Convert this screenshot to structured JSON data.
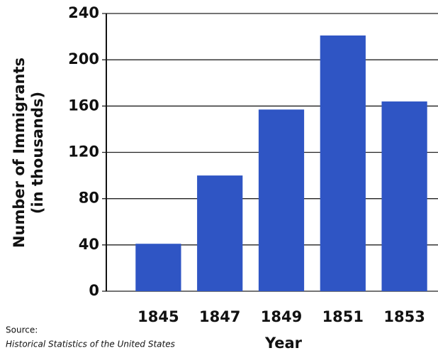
{
  "chart_data": {
    "type": "bar",
    "y_label": [
      "Number of Immigrants",
      "(in thousands)"
    ],
    "x_label": "Year",
    "source_label": "Source:",
    "source_text": "Historical Statistics of the United States",
    "categories": [
      "1845",
      "1847",
      "1849",
      "1851",
      "1853"
    ],
    "values": [
      41,
      100,
      157,
      221,
      164
    ],
    "color": "#2f55c4",
    "ylim": [
      0,
      240
    ],
    "yticks": [
      0,
      40,
      80,
      120,
      160,
      200,
      240
    ],
    "grid": true
  }
}
